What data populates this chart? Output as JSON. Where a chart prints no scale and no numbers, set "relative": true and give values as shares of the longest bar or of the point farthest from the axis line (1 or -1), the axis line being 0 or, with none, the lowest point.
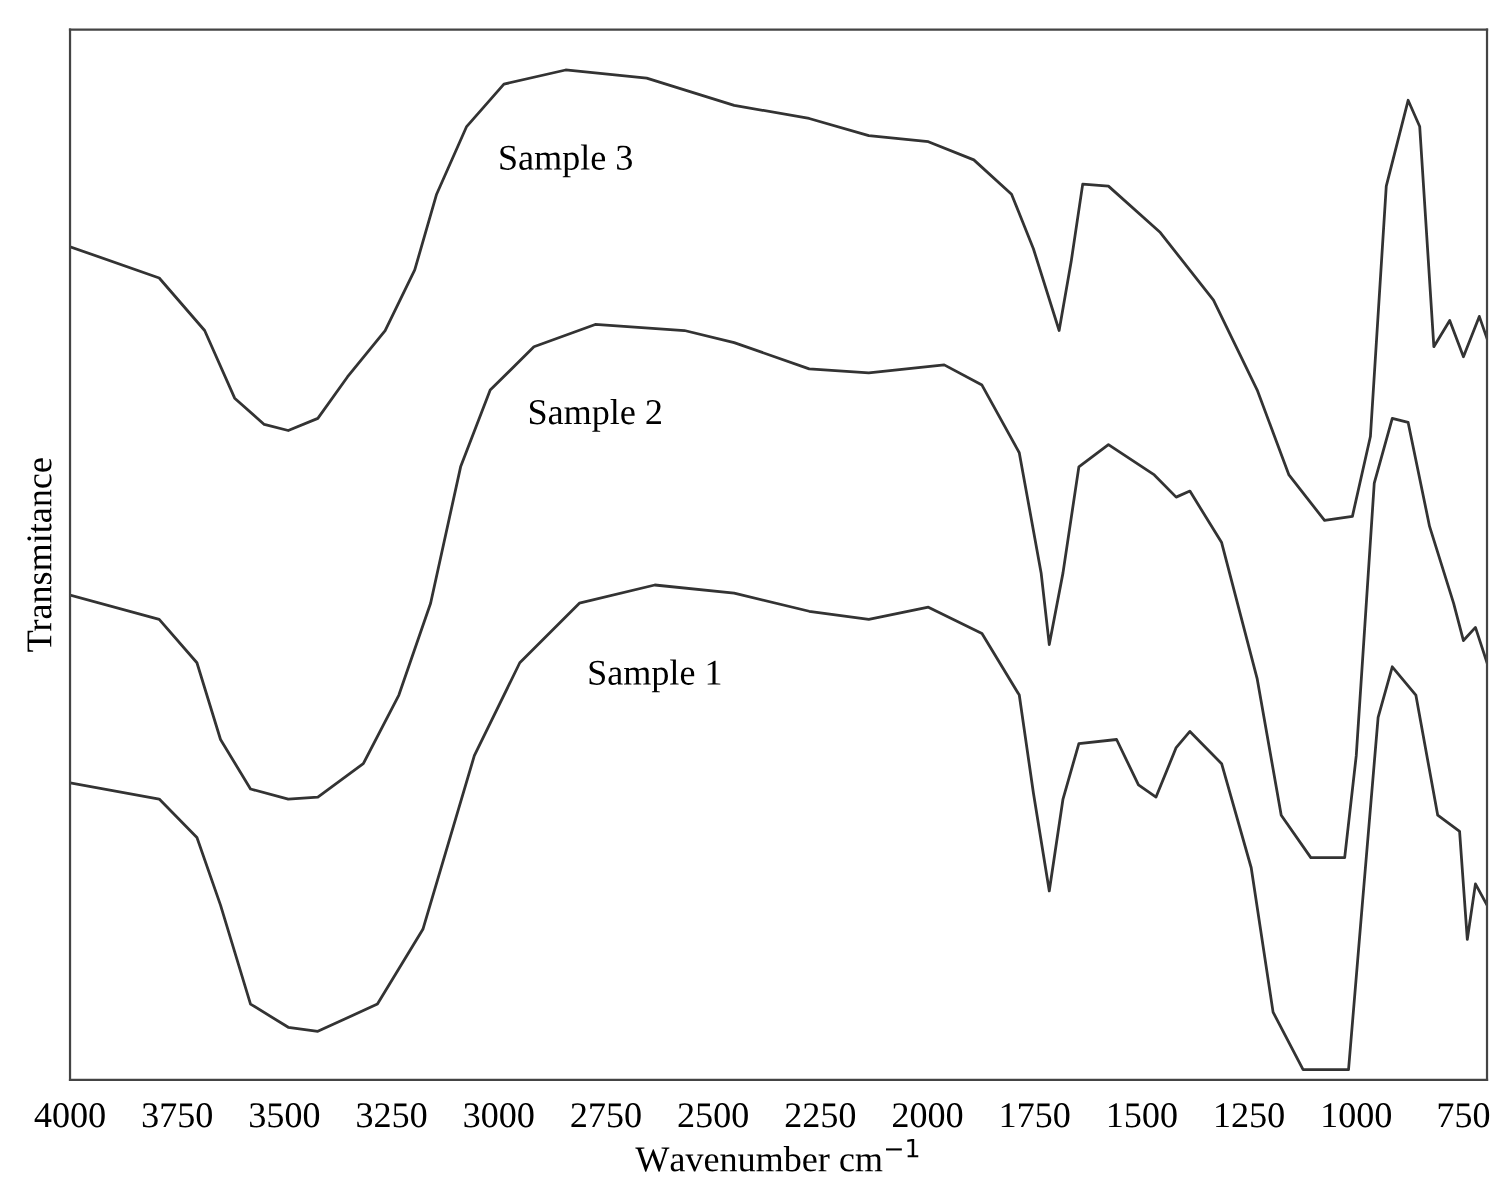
{
  "chart_data": {
    "type": "line",
    "relative": true,
    "xlabel": "Wavenumber cm$^{−1}$",
    "ylabel": "Transmitance",
    "xlim": [
      4000,
      695
    ],
    "xticks": [
      4000,
      3750,
      3500,
      3250,
      3000,
      2750,
      2500,
      2250,
      2000,
      1750,
      1500,
      1250,
      1000,
      750
    ],
    "grid": false,
    "legend": false,
    "marker": "none",
    "line_style": "solid",
    "series": [
      {
        "name": "Sample 3",
        "color": "#333333",
        "x": [
          4000,
          3792,
          3686,
          3616,
          3547,
          3491,
          3422,
          3353,
          3265,
          3196,
          3145,
          3075,
          2988,
          2844,
          2655,
          2451,
          2276,
          2137,
          1998,
          1892,
          1804,
          1753,
          1693,
          1665,
          1638,
          1578,
          1457,
          1333,
          1231,
          1157,
          1074,
          1009,
          967,
          930,
          879,
          852,
          819,
          782,
          750,
          713,
          695
        ],
        "values": [
          0.825,
          0.794,
          0.742,
          0.675,
          0.649,
          0.643,
          0.655,
          0.696,
          0.742,
          0.802,
          0.877,
          0.944,
          0.986,
          1,
          0.992,
          0.965,
          0.952,
          0.935,
          0.929,
          0.911,
          0.877,
          0.823,
          0.742,
          0.81,
          0.887,
          0.885,
          0.839,
          0.772,
          0.683,
          0.599,
          0.554,
          0.558,
          0.637,
          0.885,
          0.97,
          0.944,
          0.726,
          0.752,
          0.716,
          0.756,
          0.734
        ]
      },
      {
        "name": "Sample 2",
        "color": "#333333",
        "x": [
          4000,
          3792,
          3704,
          3649,
          3579,
          3491,
          3422,
          3316,
          3233,
          3159,
          3089,
          3020,
          2918,
          2775,
          2567,
          2451,
          2276,
          2137,
          1961,
          1873,
          1786,
          1735,
          1716,
          1684,
          1647,
          1578,
          1471,
          1420,
          1388,
          1314,
          1231,
          1175,
          1106,
          1027,
          1000,
          958,
          916,
          879,
          829,
          773,
          750,
          722,
          695
        ],
        "values": [
          0.48,
          0.456,
          0.413,
          0.337,
          0.288,
          0.278,
          0.28,
          0.313,
          0.381,
          0.472,
          0.607,
          0.683,
          0.726,
          0.748,
          0.742,
          0.73,
          0.704,
          0.7,
          0.708,
          0.688,
          0.621,
          0.502,
          0.431,
          0.502,
          0.607,
          0.629,
          0.599,
          0.577,
          0.583,
          0.532,
          0.397,
          0.262,
          0.22,
          0.22,
          0.321,
          0.591,
          0.655,
          0.651,
          0.548,
          0.472,
          0.435,
          0.448,
          0.413
        ]
      },
      {
        "name": "Sample 1",
        "color": "#333333",
        "x": [
          4000,
          3792,
          3704,
          3649,
          3579,
          3491,
          3422,
          3283,
          3177,
          3057,
          2951,
          2812,
          2636,
          2451,
          2276,
          2137,
          1998,
          1873,
          1786,
          1753,
          1716,
          1684,
          1647,
          1559,
          1508,
          1467,
          1420,
          1388,
          1314,
          1245,
          1194,
          1124,
          1018,
          986,
          949,
          916,
          861,
          810,
          759,
          741,
          722,
          695
        ],
        "values": [
          0.294,
          0.278,
          0.24,
          0.173,
          0.075,
          0.052,
          0.048,
          0.075,
          0.149,
          0.321,
          0.413,
          0.472,
          0.49,
          0.482,
          0.464,
          0.456,
          0.468,
          0.442,
          0.381,
          0.284,
          0.187,
          0.278,
          0.333,
          0.337,
          0.292,
          0.28,
          0.329,
          0.345,
          0.313,
          0.21,
          0.067,
          0.01,
          0.01,
          0.173,
          0.359,
          0.409,
          0.381,
          0.262,
          0.246,
          0.139,
          0.194,
          0.173
        ]
      }
    ]
  }
}
